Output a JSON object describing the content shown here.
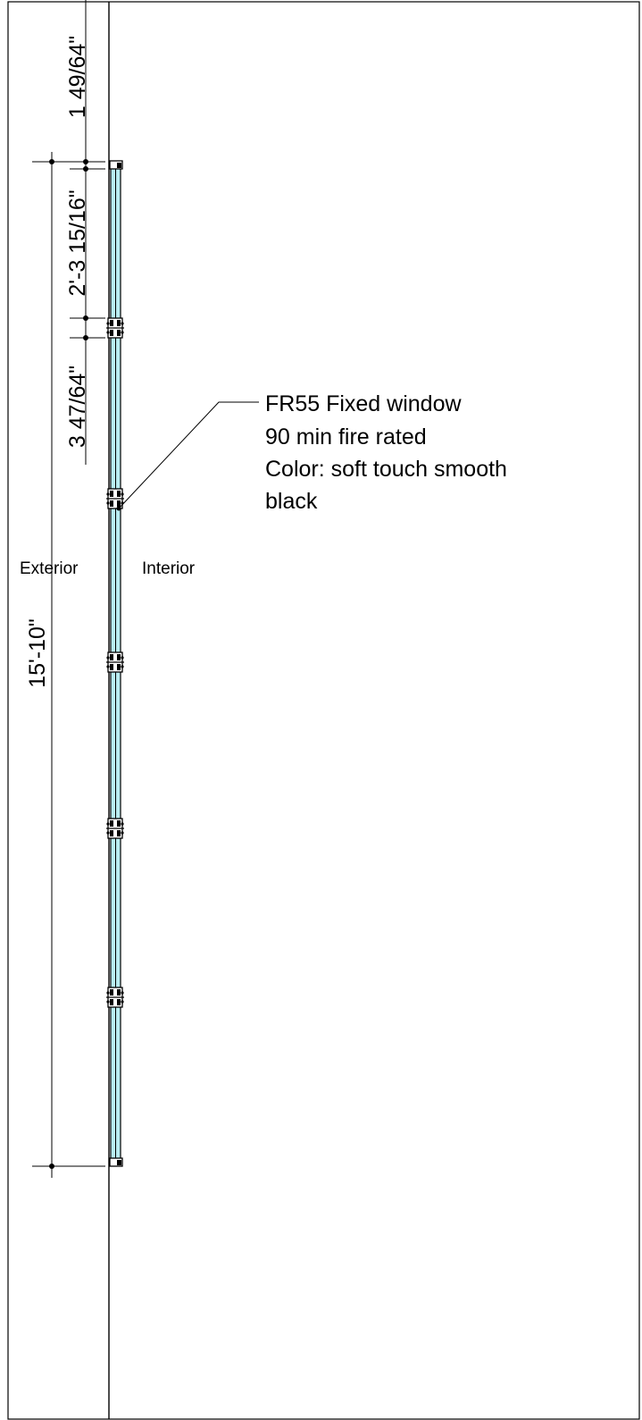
{
  "dimensions": {
    "top_offset": "1 49/64\"",
    "first_panel": "2'-3 15/16\"",
    "mullion_gap": "3 47/64\"",
    "overall_height": "15'-10\""
  },
  "labels": {
    "exterior": "Exterior",
    "interior": "Interior"
  },
  "callout": {
    "line1": "FR55 Fixed window",
    "line2": "90 min fire rated",
    "line3": "Color: soft touch smooth",
    "line4": "black"
  },
  "colors": {
    "glass": "#b8ecf0",
    "frame": "#000000",
    "background": "#ffffff"
  }
}
